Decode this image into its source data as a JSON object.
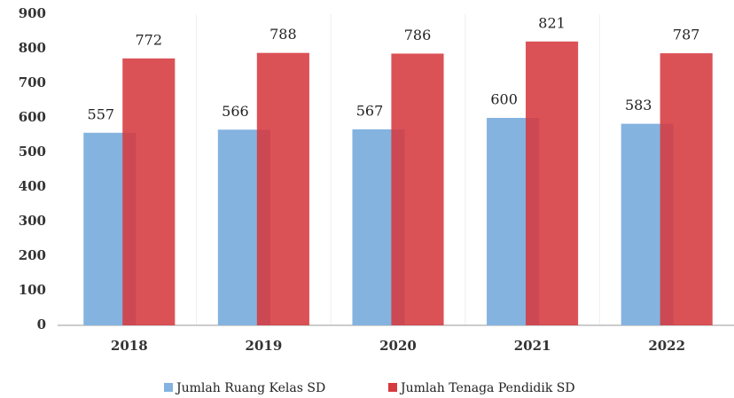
{
  "chart_data": {
    "type": "bar",
    "categories": [
      "2018",
      "2019",
      "2020",
      "2021",
      "2022"
    ],
    "series": [
      {
        "name": "Jumlah Ruang Kelas SD",
        "color": "#84b3e0",
        "values": [
          557,
          566,
          567,
          600,
          583
        ]
      },
      {
        "name": "Jumlah Tenaga Pendidik SD",
        "color": "#d63a3f",
        "values": [
          772,
          788,
          786,
          821,
          787
        ]
      }
    ],
    "ylim": [
      0,
      900
    ],
    "yticks": [
      0,
      100,
      200,
      300,
      400,
      500,
      600,
      700,
      800,
      900
    ],
    "grid": false,
    "legend": "bottom"
  }
}
